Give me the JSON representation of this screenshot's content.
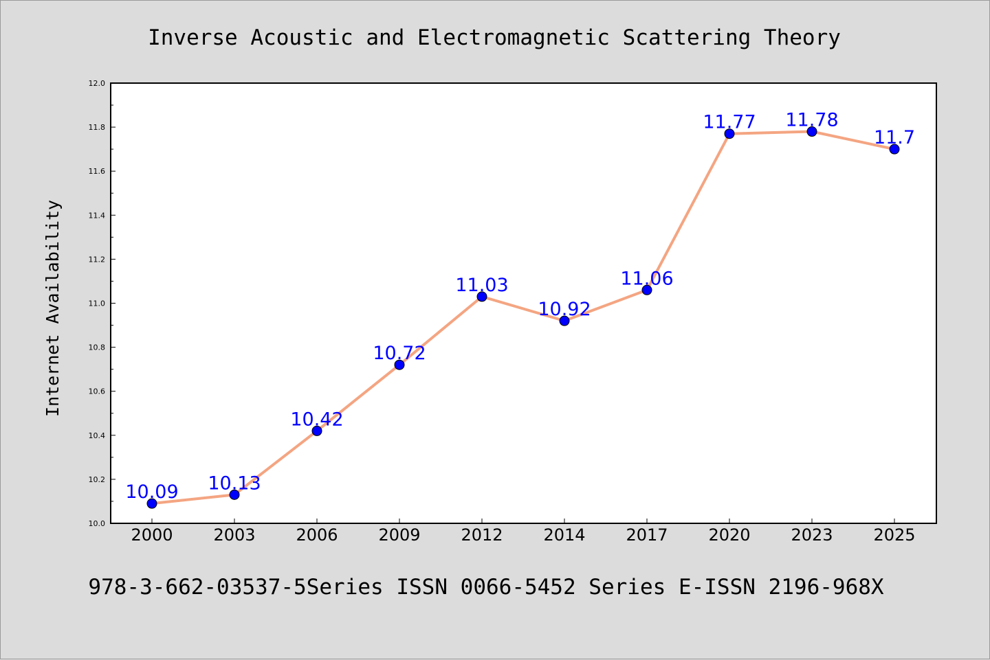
{
  "title": "Inverse Acoustic and Electromagnetic Scattering Theory",
  "footer": "978-3-662-03537-5Series ISSN 0066-5452 Series E-ISSN 2196-968X",
  "chart_data": {
    "type": "line",
    "title": "Inverse Acoustic and Electromagnetic Scattering Theory",
    "xlabel": "",
    "ylabel": "Internet Availability",
    "categories": [
      "2000",
      "2003",
      "2006",
      "2009",
      "2012",
      "2014",
      "2017",
      "2020",
      "2023",
      "2025"
    ],
    "series": [
      {
        "values": [
          10.09,
          10.13,
          10.42,
          10.72,
          11.03,
          10.92,
          11.06,
          11.77,
          11.78,
          11.7
        ],
        "labels": [
          "10.09",
          "10.13",
          "10.42",
          "10.72",
          "11.03",
          "10.92",
          "11.06",
          "11.77",
          "11.78",
          "11.7"
        ],
        "line_color": "#f4a582",
        "marker_color": "#0000ff"
      }
    ],
    "ylim": [
      10.0,
      12.0
    ],
    "yticks": [
      "10.0",
      "10.2",
      "10.4",
      "10.6",
      "10.8",
      "11.0",
      "11.2",
      "11.4",
      "11.6",
      "11.8",
      "12.0"
    ],
    "grid": false,
    "legend": "none",
    "colors": {
      "background": "#dcdcdc",
      "plot_area": "#ffffff",
      "line": "#f4a582",
      "marker": "#0000ff",
      "data_label": "#0000ff"
    }
  }
}
